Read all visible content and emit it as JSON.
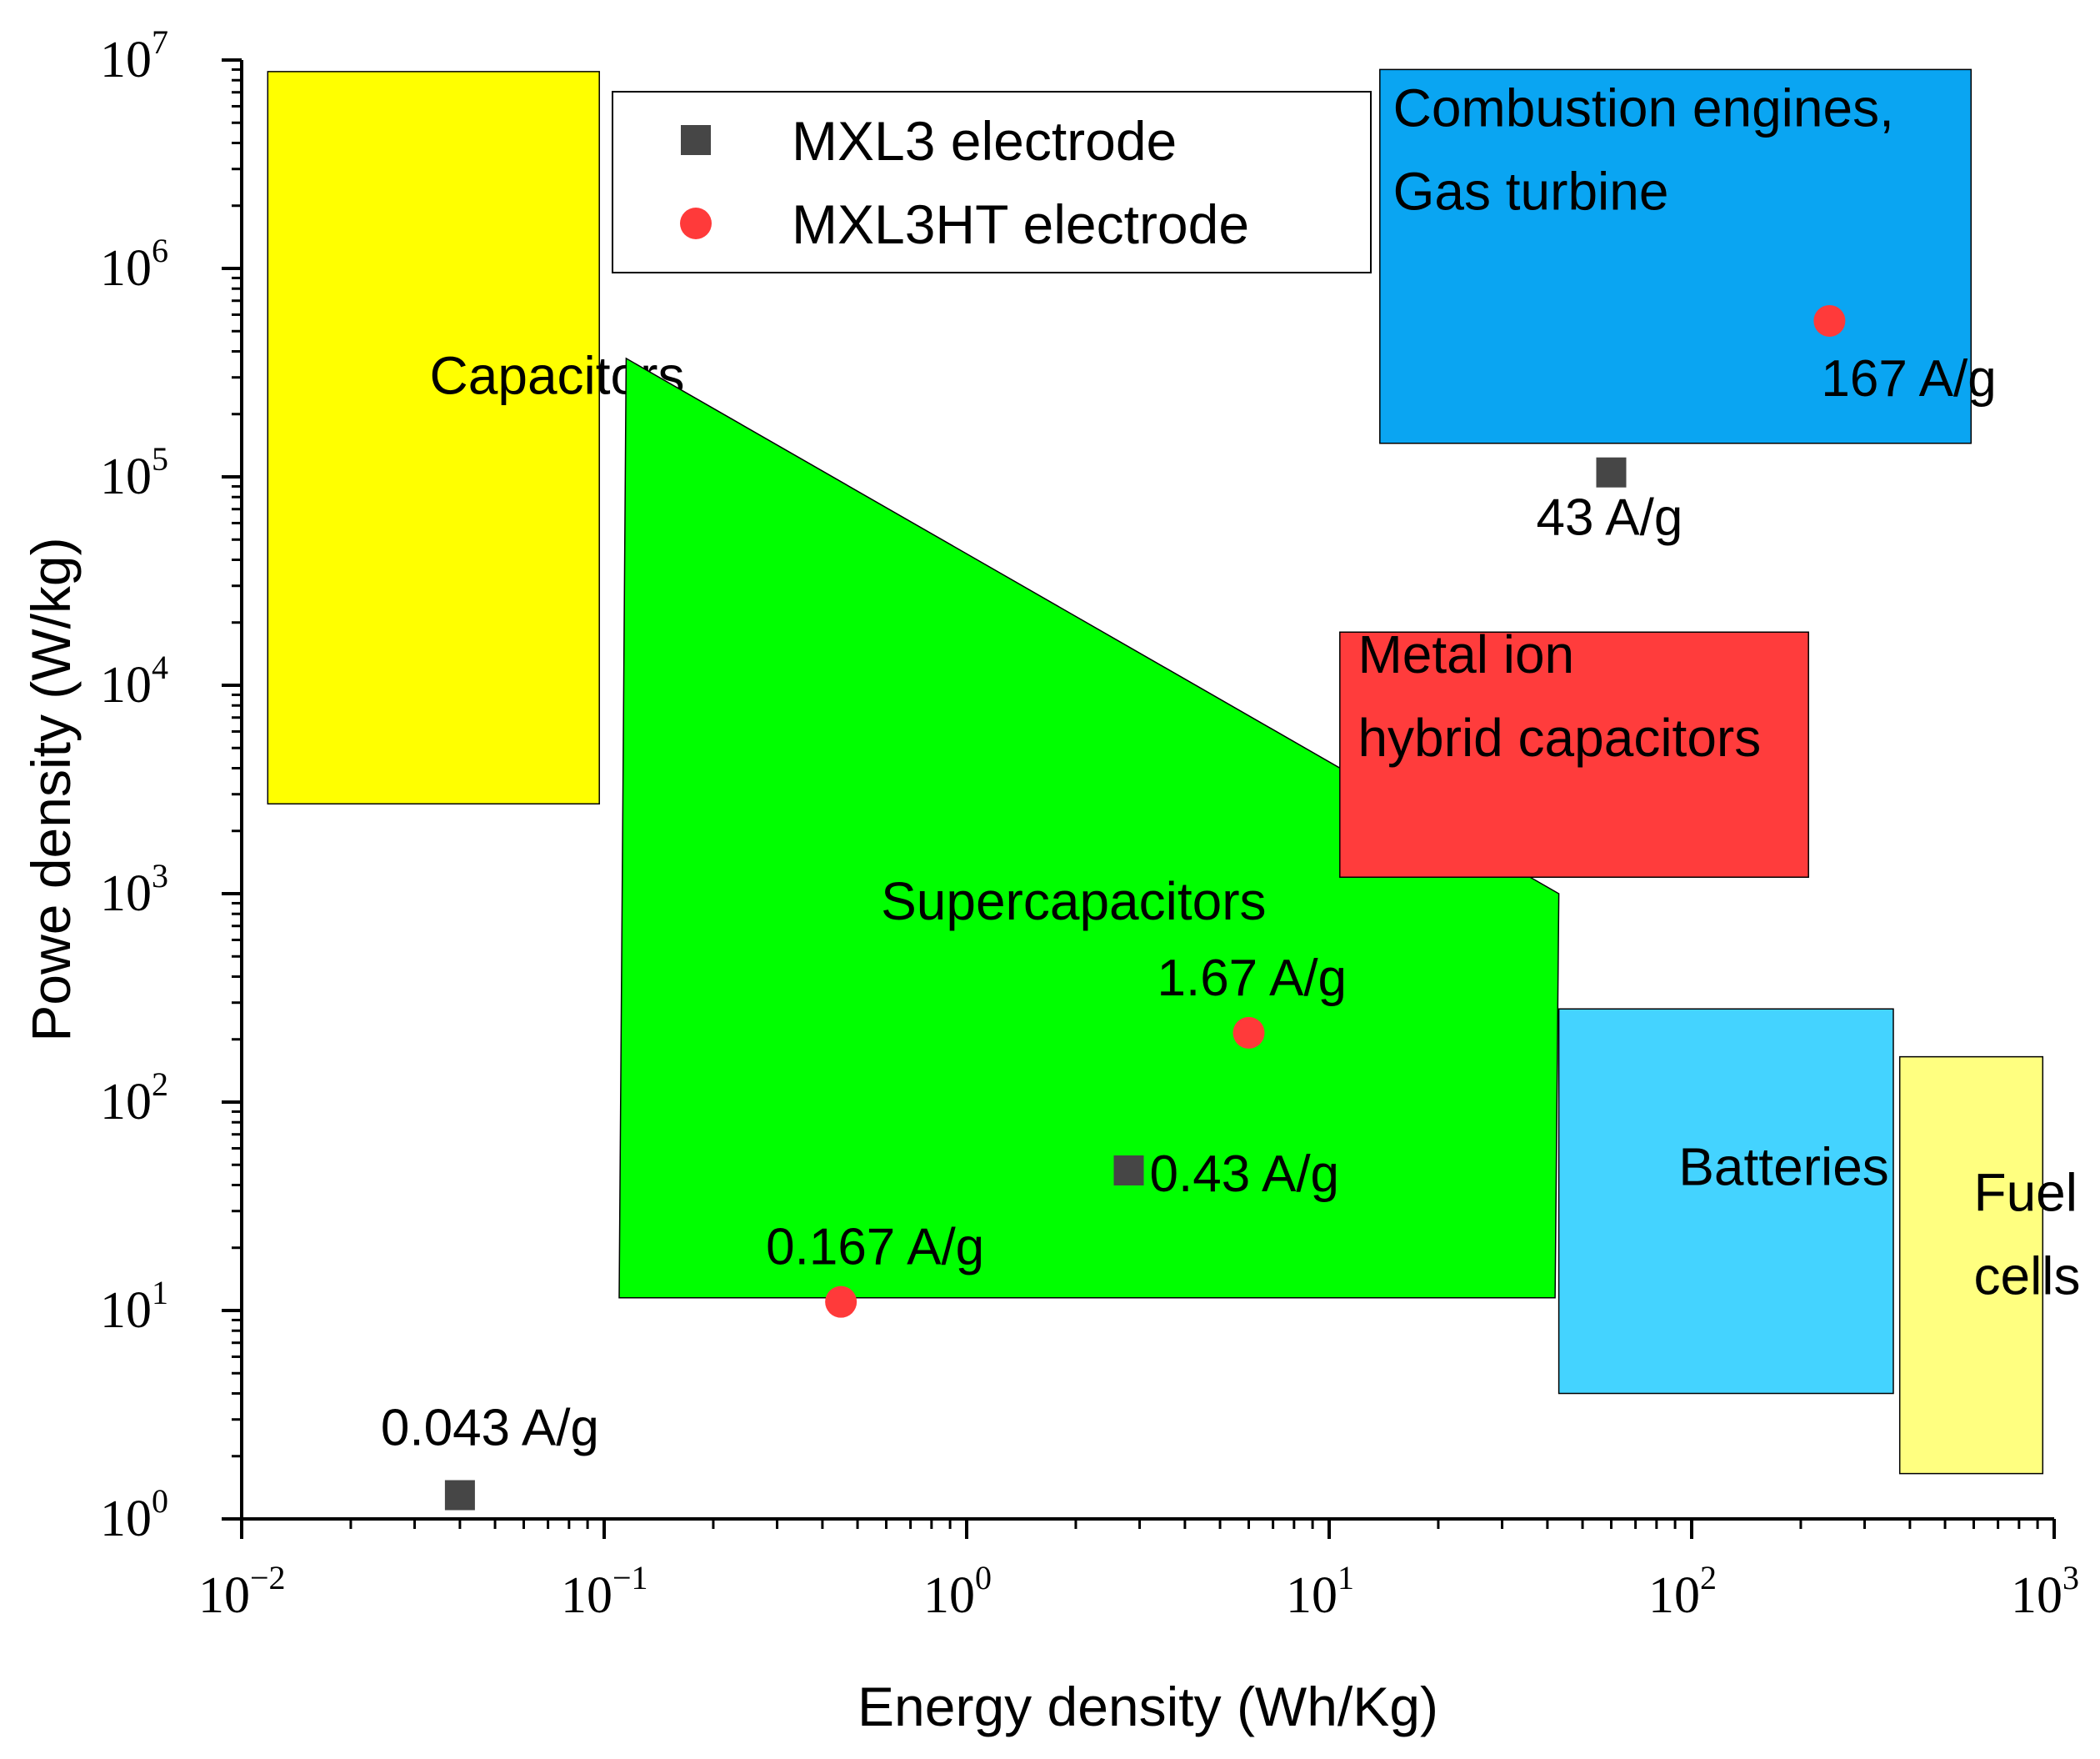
{
  "chart_data": {
    "type": "scatter",
    "x_scale": "log",
    "y_scale": "log",
    "xlim": [
      0.01,
      1000
    ],
    "ylim": [
      1,
      10000000
    ],
    "xlabel": "Energy density (Wh/Kg)",
    "ylabel": "Powe density (W/kg)",
    "x_ticks": [
      {
        "base": "10",
        "exp": "−2",
        "value": 0.01
      },
      {
        "base": "10",
        "exp": "−1",
        "value": 0.1
      },
      {
        "base": "10",
        "exp": "0",
        "value": 1
      },
      {
        "base": "10",
        "exp": "1",
        "value": 10
      },
      {
        "base": "10",
        "exp": "2",
        "value": 100
      },
      {
        "base": "10",
        "exp": "3",
        "value": 1000
      }
    ],
    "y_ticks": [
      {
        "base": "10",
        "exp": "0",
        "value": 1
      },
      {
        "base": "10",
        "exp": "1",
        "value": 10
      },
      {
        "base": "10",
        "exp": "2",
        "value": 100
      },
      {
        "base": "10",
        "exp": "3",
        "value": 1000
      },
      {
        "base": "10",
        "exp": "4",
        "value": 10000
      },
      {
        "base": "10",
        "exp": "5",
        "value": 100000
      },
      {
        "base": "10",
        "exp": "6",
        "value": 1000000
      },
      {
        "base": "10",
        "exp": "7",
        "value": 10000000
      }
    ],
    "regions": [
      {
        "name": "Capacitors",
        "label_lines": [
          "Capacitors"
        ],
        "color": "#ffff00",
        "polygon": [
          [
            0.0118,
            2700
          ],
          [
            0.097,
            2700
          ],
          [
            0.097,
            8800000
          ],
          [
            0.0118,
            8800000
          ]
        ],
        "label_at": [
          0.033,
          250000
        ]
      },
      {
        "name": "Supercapacitors",
        "label_lines": [
          "Supercapacitors"
        ],
        "color": "#00ff00",
        "polygon": [
          [
            0.11,
            11.5
          ],
          [
            42,
            11.5
          ],
          [
            43,
            1000
          ],
          [
            0.115,
            370000
          ]
        ],
        "label_at": [
          0.58,
          750
        ]
      },
      {
        "name": "Combustion engines, Gas turbine",
        "label_lines": [
          "Combustion engines,",
          "Gas turbine"
        ],
        "color": "#0aa5f2",
        "polygon": [
          [
            13.8,
            145000
          ],
          [
            590,
            145000
          ],
          [
            590,
            9000000
          ],
          [
            13.8,
            9000000
          ]
        ],
        "label_at": [
          15,
          4800000
        ]
      },
      {
        "name": "Metal ion hybrid capacitors",
        "label_lines": [
          "Metal ion",
          "hybrid capacitors"
        ],
        "color": "#ff3c3c",
        "polygon": [
          [
            10.7,
            1200
          ],
          [
            210,
            1200
          ],
          [
            210,
            18000
          ],
          [
            10.7,
            18000
          ]
        ],
        "label_at": [
          12,
          11500
        ]
      },
      {
        "name": "Batteries",
        "label_lines": [
          "Batteries"
        ],
        "color": "#44d3ff",
        "polygon": [
          [
            43,
            4.0
          ],
          [
            360,
            4.0
          ],
          [
            360,
            280
          ],
          [
            43,
            280
          ]
        ],
        "label_at": [
          92,
          40
        ]
      },
      {
        "name": "Fuel cells",
        "label_lines": [
          "Fuel",
          "cells"
        ],
        "color": "#ffff80",
        "polygon": [
          [
            375,
            1.65
          ],
          [
            930,
            1.65
          ],
          [
            930,
            165
          ],
          [
            375,
            165
          ]
        ],
        "label_at": [
          600,
          30
        ]
      }
    ],
    "legend": {
      "position": "top-center"
    },
    "series": [
      {
        "name": "MXL3 electrode",
        "marker": "square",
        "color": "#464646",
        "points": [
          {
            "x": 0.04,
            "y": 1.3,
            "label": "0.043 A/g"
          },
          {
            "x": 2.8,
            "y": 47,
            "label": "0.43 A/g"
          },
          {
            "x": 60,
            "y": 105000,
            "label": "43 A/g"
          }
        ]
      },
      {
        "name": "MXL3HT electrode",
        "marker": "circle",
        "color": "#ff3a3a",
        "points": [
          {
            "x": 0.45,
            "y": 11,
            "label": "0.167 A/g"
          },
          {
            "x": 6.0,
            "y": 215,
            "label": "1.67 A/g"
          },
          {
            "x": 240,
            "y": 560000,
            "label": "167 A/g"
          }
        ]
      }
    ]
  }
}
